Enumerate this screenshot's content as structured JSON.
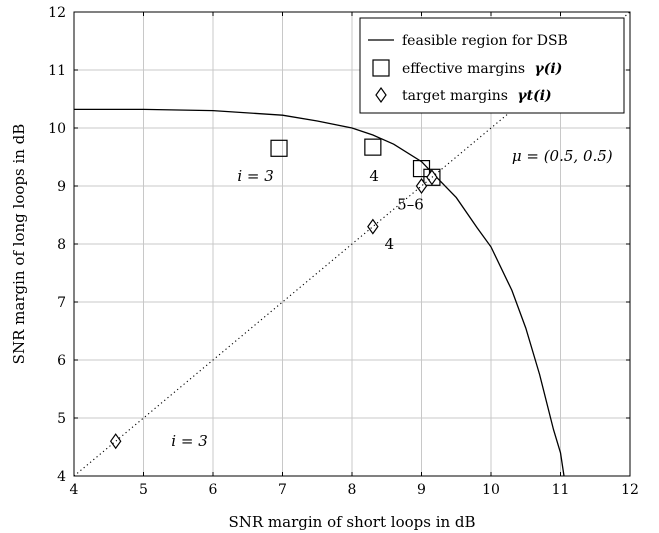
{
  "chart_data": {
    "type": "scatter",
    "xlabel": "SNR margin of short loops in dB",
    "ylabel": "SNR margin of long loops in dB",
    "xlim": [
      4,
      12
    ],
    "ylim": [
      4,
      12
    ],
    "xticks": [
      4,
      5,
      6,
      7,
      8,
      9,
      10,
      11,
      12
    ],
    "yticks": [
      4,
      5,
      6,
      7,
      8,
      9,
      10,
      11,
      12
    ],
    "grid": true,
    "legend_position": "top-right",
    "series": [
      {
        "name": "feasible region for DSB",
        "kind": "line",
        "style": "solid",
        "x": [
          4.0,
          5.0,
          6.0,
          7.0,
          7.5,
          8.0,
          8.3,
          8.6,
          9.0,
          9.2,
          9.5,
          9.8,
          10.0,
          10.3,
          10.5,
          10.7,
          10.9,
          11.0,
          11.05
        ],
        "y": [
          10.32,
          10.32,
          10.3,
          10.22,
          10.12,
          10.0,
          9.88,
          9.72,
          9.42,
          9.17,
          8.8,
          8.28,
          7.95,
          7.2,
          6.55,
          5.75,
          4.8,
          4.4,
          4.0
        ]
      },
      {
        "name": "effective margins",
        "name_math": "γ(i)",
        "kind": "marker",
        "marker": "square",
        "x": [
          6.95,
          8.3,
          9.0,
          9.15
        ],
        "y": [
          9.65,
          9.67,
          9.3,
          9.15
        ]
      },
      {
        "name": "target margins",
        "name_math": "γt(i)",
        "kind": "marker",
        "marker": "diamond",
        "x": [
          4.6,
          8.3,
          9.0,
          9.15
        ],
        "y": [
          4.6,
          8.3,
          9.0,
          9.15
        ]
      },
      {
        "name": "",
        "kind": "line",
        "style": "dotted",
        "x": [
          4,
          12
        ],
        "y": [
          4,
          12
        ]
      }
    ],
    "annotations": [
      {
        "text": "i = 3",
        "x": 6.35,
        "y": 9.17
      },
      {
        "text": "4",
        "x": 8.25,
        "y": 9.17
      },
      {
        "text": "μ = (0.5, 0.5)",
        "x": 10.3,
        "y": 9.52
      },
      {
        "text": "5–6",
        "x": 8.65,
        "y": 8.68
      },
      {
        "text": "4",
        "x": 8.47,
        "y": 8.0
      },
      {
        "text": "i = 3",
        "x": 5.4,
        "y": 4.6
      }
    ]
  }
}
